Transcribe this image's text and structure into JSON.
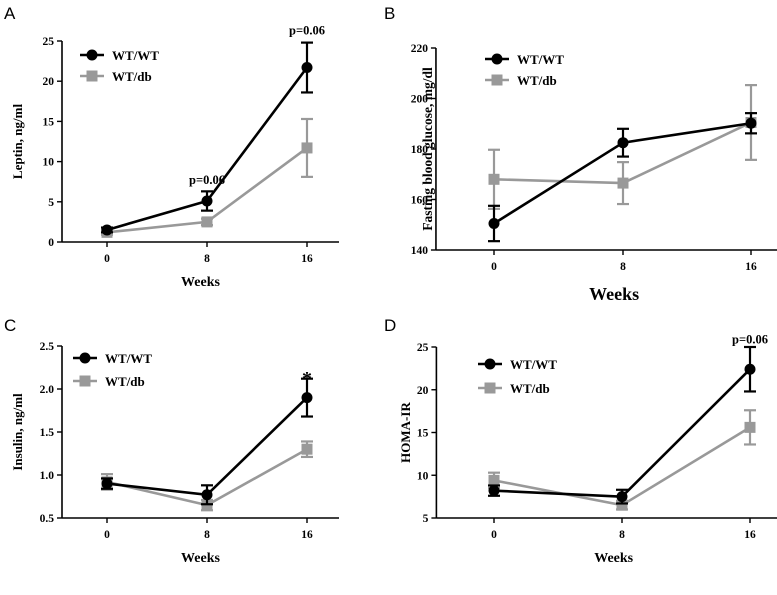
{
  "chart_data": [
    {
      "panel": "A",
      "type": "line",
      "x": [
        0,
        8,
        16
      ],
      "xlabel": "Weeks",
      "ylabel": "Leptin, ng/ml",
      "ylim": [
        0,
        25
      ],
      "yticks": [
        "0",
        "5",
        "10",
        "15",
        "20",
        "25"
      ],
      "xticks": [
        "0",
        "8",
        "16"
      ],
      "legend_position": "top-left",
      "series": [
        {
          "name": "WT/WT",
          "color": "#000000",
          "marker": "circle",
          "values": [
            1.5,
            5.1,
            21.7
          ],
          "errors": [
            0.3,
            1.2,
            3.1
          ]
        },
        {
          "name": "WT/db",
          "color": "#999999",
          "marker": "square",
          "values": [
            1.2,
            2.5,
            11.7
          ],
          "errors": [
            0.3,
            0.4,
            3.6
          ]
        }
      ],
      "annotations": [
        {
          "text": "p=0.06",
          "x": 8,
          "y": 7.2
        },
        {
          "text": "p=0.06",
          "x": 16,
          "y": 25.8
        }
      ]
    },
    {
      "panel": "B",
      "type": "line",
      "x": [
        0,
        8,
        16
      ],
      "xlabel": "Weeks",
      "ylabel": "Fasting blood glucose, mg/dl",
      "ylim": [
        140,
        220
      ],
      "yticks": [
        "140",
        "160",
        "180",
        "200",
        "220"
      ],
      "xticks": [
        "0",
        "8",
        "16"
      ],
      "legend_position": "top-left",
      "series": [
        {
          "name": "WT/WT",
          "color": "#000000",
          "marker": "circle",
          "values": [
            150.5,
            182.5,
            190.2
          ],
          "errors": [
            7,
            5.5,
            4
          ]
        },
        {
          "name": "WT/db",
          "color": "#999999",
          "marker": "square",
          "values": [
            168,
            166.5,
            190.5
          ],
          "errors": [
            11.7,
            8.3,
            14.8
          ]
        }
      ],
      "annotations": []
    },
    {
      "panel": "C",
      "type": "line",
      "x": [
        0,
        8,
        16
      ],
      "xlabel": "Weeks",
      "ylabel": "Insulin, ng/ml",
      "ylim": [
        0.5,
        2.5
      ],
      "yticks": [
        "0.5",
        "1.0",
        "1.5",
        "2.0",
        "2.5"
      ],
      "xticks": [
        "0",
        "8",
        "16"
      ],
      "legend_position": "top-left",
      "series": [
        {
          "name": "WT/WT",
          "color": "#000000",
          "marker": "circle",
          "values": [
            0.9,
            0.77,
            1.9
          ],
          "errors": [
            0.06,
            0.11,
            0.22
          ]
        },
        {
          "name": "WT/db",
          "color": "#999999",
          "marker": "square",
          "values": [
            0.92,
            0.65,
            1.3
          ],
          "errors": [
            0.09,
            0.06,
            0.09
          ]
        }
      ],
      "annotations": [
        {
          "text": "*",
          "x": 16,
          "y": 2.16
        }
      ]
    },
    {
      "panel": "D",
      "type": "line",
      "x": [
        0,
        8,
        16
      ],
      "xlabel": "Weeks",
      "ylabel": "HOMA-IR",
      "ylim": [
        5,
        25
      ],
      "yticks": [
        "5",
        "10",
        "15",
        "20",
        "25"
      ],
      "xticks": [
        "0",
        "8",
        "16"
      ],
      "legend_position": "top-left",
      "series": [
        {
          "name": "WT/WT",
          "color": "#000000",
          "marker": "circle",
          "values": [
            8.2,
            7.5,
            22.4
          ],
          "errors": [
            0.6,
            0.8,
            2.6
          ]
        },
        {
          "name": "WT/db",
          "color": "#999999",
          "marker": "square",
          "values": [
            9.4,
            6.5,
            15.6
          ],
          "errors": [
            0.9,
            0.5,
            2
          ]
        }
      ],
      "annotations": [
        {
          "text": "p=0.06",
          "x": 16,
          "y": 25.4
        }
      ]
    }
  ]
}
